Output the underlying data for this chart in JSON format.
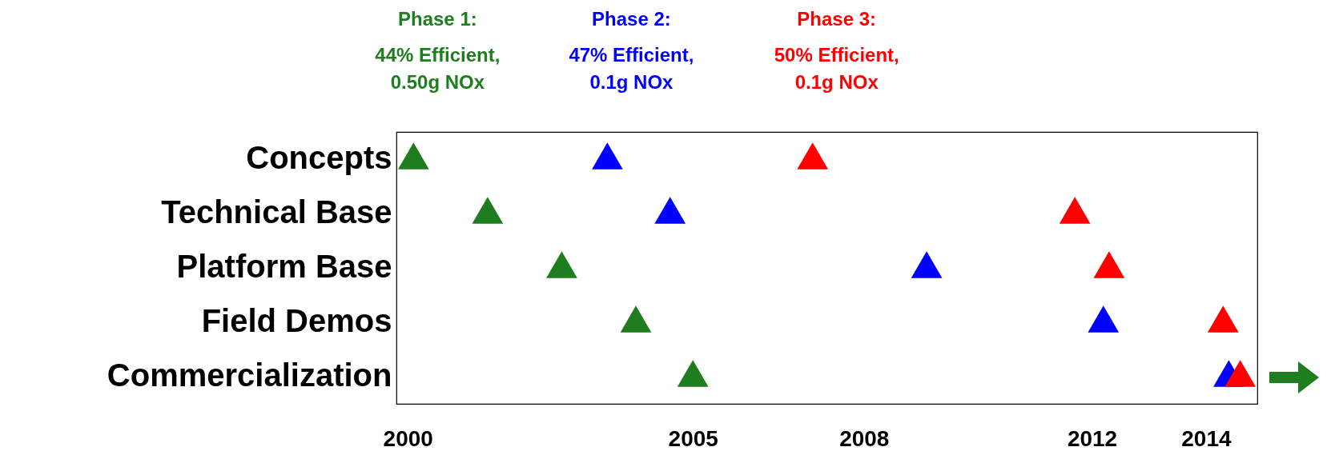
{
  "chart_data": {
    "type": "scatter",
    "orientation": "horizontal",
    "marker": "triangle",
    "legend": false,
    "grid": false,
    "categories": [
      "Concepts",
      "Technical Base",
      "Platform Base",
      "Field Demos",
      "Commercialization"
    ],
    "series": [
      {
        "name": "Phase 1:",
        "color": "#1e7d1e",
        "values": [
          2000.1,
          2001.4,
          2002.7,
          2004.0,
          2005.0
        ]
      },
      {
        "name": "Phase 2:",
        "color": "#0000ff",
        "values": [
          2003.5,
          2004.6,
          2009.1,
          2012.2,
          2014.4
        ]
      },
      {
        "name": "Phase 3:",
        "color": "#ff0000",
        "values": [
          2007.1,
          2011.7,
          2012.3,
          2014.3,
          2014.6
        ]
      }
    ],
    "annotations": [
      "44% Efficient,\n0.50g NOx",
      "47% Efficient,\n0.1g NOx",
      "50% Efficient,\n0.1g NOx"
    ],
    "xlim": [
      1999.8,
      2014.9
    ],
    "xticks": [
      2000,
      2005,
      2008,
      2012,
      2014
    ]
  }
}
